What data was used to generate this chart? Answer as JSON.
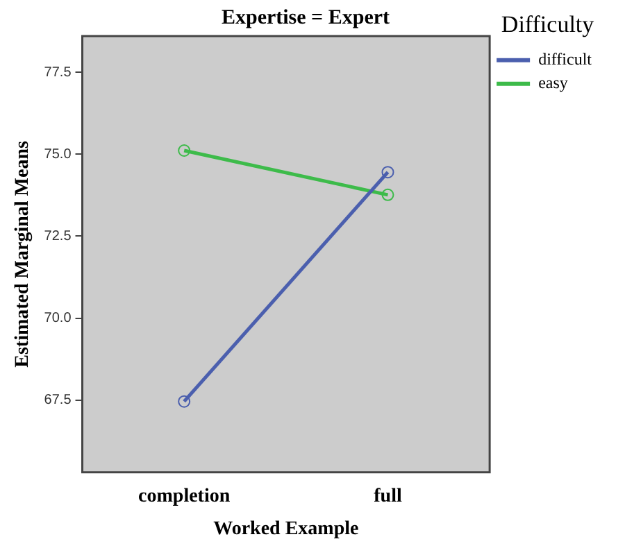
{
  "chart_data": {
    "type": "line",
    "title": "Expertise = Expert",
    "xlabel": "Worked Example",
    "ylabel": "Estimated Marginal Means",
    "legend_title": "Difficulty",
    "categories": [
      "completion",
      "full"
    ],
    "series": [
      {
        "name": "difficult",
        "color": "#4b5fae",
        "values": [
          67.46,
          74.45
        ]
      },
      {
        "name": "easy",
        "color": "#3dbb4a",
        "values": [
          75.11,
          73.76
        ]
      }
    ],
    "ylim": [
      65.3,
      78.6
    ],
    "yticks": [
      {
        "value": 67.5,
        "label": "67.5"
      },
      {
        "value": 70,
        "label": "70.0"
      },
      {
        "value": 72.5,
        "label": "72.5"
      },
      {
        "value": 75,
        "label": "75.0"
      },
      {
        "value": 77.5,
        "label": "77.5"
      }
    ],
    "grid": false,
    "legend": "top right",
    "marker": "circle",
    "line_style": "solid"
  }
}
